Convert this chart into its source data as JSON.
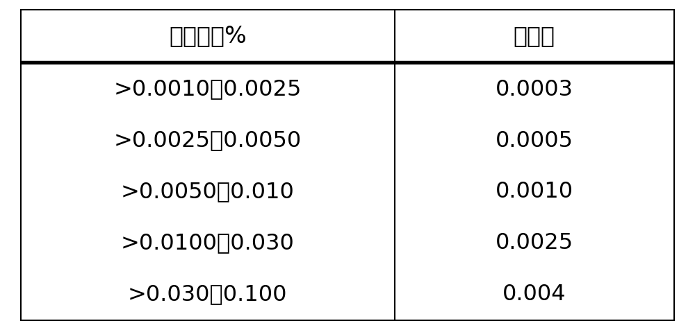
{
  "col1_header": "磷含量，%",
  "col2_header": "允许差",
  "rows": [
    [
      ">0.0010～0.0025",
      "0.0003"
    ],
    [
      ">0.0025～0.0050",
      "0.0005"
    ],
    [
      ">0.0050～0.010",
      "0.0010"
    ],
    [
      ">0.0100～0.030",
      "0.0025"
    ],
    [
      ">0.030～0.100",
      "0.004"
    ]
  ],
  "background_color": "#ffffff",
  "text_color": "#000000",
  "border_color": "#000000",
  "header_fontsize": 24,
  "cell_fontsize": 23,
  "fig_width": 10.0,
  "fig_height": 4.76
}
